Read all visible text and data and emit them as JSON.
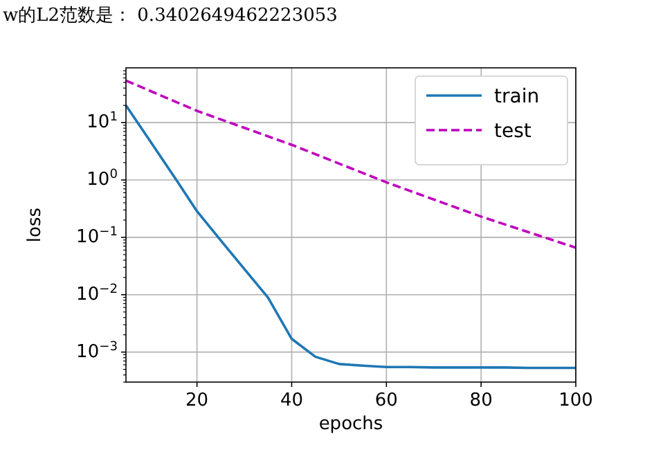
{
  "chart_data": {
    "type": "line",
    "annotations": [
      "w的L2范数是： 0.3402649462223053"
    ],
    "xlabel": "epochs",
    "ylabel": "loss",
    "log": "y",
    "grid": true,
    "legend": "top right",
    "xlim": [
      5,
      100
    ],
    "xticks": [
      20,
      40,
      60,
      80,
      100
    ],
    "ylim": [
      0.0003,
      90
    ],
    "yticks": [
      {
        "value": 0.001,
        "label": "10$^{−3}$"
      },
      {
        "value": 0.01,
        "label": "10$^{−2}$"
      },
      {
        "value": 0.1,
        "label": "10$^{−1}$"
      },
      {
        "value": 1,
        "label": "10$^{0}$"
      },
      {
        "value": 10,
        "label": "10$^{1}$"
      }
    ],
    "series": [
      {
        "name": "train",
        "color": "#1f77b4",
        "line_style": "solid",
        "x": [
          5,
          10,
          15,
          20,
          25,
          30,
          35,
          40,
          45,
          50,
          55,
          60,
          65,
          70,
          75,
          80,
          85,
          90,
          95,
          100
        ],
        "values": [
          20,
          4.9,
          1.2,
          0.285,
          0.089,
          0.028,
          0.0089,
          0.0017,
          0.00083,
          0.00062,
          0.00058,
          0.00055,
          0.00055,
          0.00054,
          0.00054,
          0.00054,
          0.00054,
          0.00053,
          0.00053,
          0.00053
        ]
      },
      {
        "name": "test",
        "color": "#bf00bf",
        "line_style": "dashed",
        "x": [
          5,
          20,
          40,
          60,
          80,
          100
        ],
        "values": [
          54,
          16,
          4.1,
          0.91,
          0.23,
          0.066
        ]
      }
    ]
  }
}
